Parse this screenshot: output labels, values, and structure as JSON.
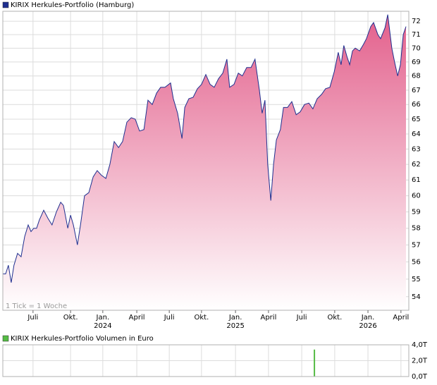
{
  "chart_data": [
    {
      "type": "area",
      "title": "KIRIX Herkules-Portfolio (Hamburg)",
      "annotation": "1 Tick = 1 Woche",
      "series": [
        {
          "name": "KIRIX Herkules-Portfolio (Hamburg)",
          "color": "#1f2f8f",
          "x": [
            0,
            1.1,
            2.2,
            3.3,
            4.4,
            5.8,
            7.2,
            8.6,
            10,
            11.1,
            12.2,
            13.3,
            14.4,
            16.1,
            17.8,
            19.4,
            21.1,
            22.8,
            23.9,
            25.6,
            26.7,
            27.8,
            29.4,
            30.6,
            32.2,
            33.9,
            35.6,
            37.2,
            38.9,
            40.6,
            42.2,
            43.9,
            45.6,
            47.2,
            48.9,
            50.6,
            52.2,
            53.9,
            55.6,
            57.2,
            58.9,
            60.6,
            62.2,
            63.9,
            66.1,
            67.2,
            68.9,
            70.6,
            71.7,
            73.3,
            75,
            76.7,
            78.3,
            80,
            81.7,
            83.3,
            85,
            86.7,
            88.3,
            89.4,
            91.1,
            92.8,
            94.4,
            96.1,
            97.8,
            99.4,
            101.1,
            102.2,
            103.3,
            104.4,
            105.6,
            106.7,
            107.8,
            109.4,
            110.6,
            112.2,
            113.9,
            115.6,
            117.2,
            118.9,
            120.6,
            122.2,
            123.9,
            125.6,
            127.2,
            128.9,
            130.6,
            132.2,
            133.3,
            134.4,
            135.6,
            136.7,
            137.8,
            138.9,
            140.6,
            142.2,
            143.3,
            145,
            146.1,
            147.8,
            148.9,
            150.6,
            151.7,
            153.3,
            154.4,
            155.6,
            156.7,
            157.8,
            158.9
          ],
          "values": [
            55.3,
            55.3,
            55.8,
            54.8,
            55.8,
            56.5,
            56.3,
            57.5,
            58.2,
            57.8,
            58,
            58,
            58.5,
            59.1,
            58.6,
            58.2,
            59,
            59.6,
            59.4,
            58,
            58.8,
            58.2,
            57,
            58.2,
            60,
            60.2,
            61.2,
            61.6,
            61.3,
            61.1,
            62,
            63.5,
            63.1,
            63.5,
            64.8,
            65.1,
            65,
            64.2,
            64.3,
            66.3,
            66,
            66.8,
            67.2,
            67.2,
            67.5,
            66.4,
            65.4,
            63.7,
            65.8,
            66.4,
            66.5,
            67.1,
            67.4,
            68.1,
            67.4,
            67.2,
            67.8,
            68.2,
            69.2,
            67.2,
            67.4,
            68.2,
            68,
            68.6,
            68.6,
            69.2,
            67,
            65.4,
            66.3,
            62,
            59.7,
            62,
            63.6,
            64.3,
            65.8,
            65.8,
            66.2,
            65.3,
            65.5,
            66,
            66.1,
            65.7,
            66.4,
            66.7,
            67.1,
            67.2,
            68.3,
            69.7,
            68.8,
            70.2,
            69.4,
            68.8,
            69.8,
            70,
            69.8,
            70.3,
            70.7,
            71.6,
            71.9,
            71,
            70.7,
            71.5,
            72.5,
            70,
            69,
            68,
            68.8,
            71,
            71.6
          ]
        }
      ],
      "xlim": [
        0,
        160
      ],
      "xticks": [
        {
          "value": 11.9,
          "label": "Juli"
        },
        {
          "value": 26.7,
          "label": "Okt."
        },
        {
          "value": 39.4,
          "label": "Jan."
        },
        {
          "value": 52.8,
          "label": "April"
        },
        {
          "value": 65.6,
          "label": "Juli"
        },
        {
          "value": 78.3,
          "label": "Okt."
        },
        {
          "value": 91.7,
          "label": "Jan."
        },
        {
          "value": 104.7,
          "label": "April"
        },
        {
          "value": 117.8,
          "label": "Juli"
        },
        {
          "value": 130.8,
          "label": "Okt."
        },
        {
          "value": 143.9,
          "label": "Jan."
        },
        {
          "value": 156.9,
          "label": "April"
        }
      ],
      "xtick_years": [
        {
          "value": 39.4,
          "label": "2024"
        },
        {
          "value": 91.7,
          "label": "2025"
        },
        {
          "value": 143.9,
          "label": "2026"
        }
      ],
      "ylim": [
        53.24,
        72.75
      ],
      "log_scale": true,
      "yticks": [
        54,
        55,
        56,
        57,
        58,
        59,
        60,
        61,
        62,
        63,
        64,
        65,
        66,
        67,
        68,
        69,
        70,
        71,
        72
      ],
      "grid": true,
      "fill_color": "#e3608c"
    },
    {
      "type": "bar",
      "title": "KIRIX Herkules-Portfolio Volumen in Euro",
      "series": [
        {
          "name": "KIRIX Herkules-Portfolio Volumen in Euro",
          "color": "#55bb44",
          "x": [
            122.8
          ],
          "values": [
            3.4
          ]
        }
      ],
      "xlim": [
        0,
        160
      ],
      "xticks": [
        11.9,
        26.7,
        39.4,
        52.8,
        65.6,
        78.3,
        91.7,
        104.7,
        117.8,
        130.8,
        143.9,
        156.9
      ],
      "ylim": [
        0,
        4
      ],
      "yticks": [
        {
          "value": 0,
          "label": "0,0T"
        },
        {
          "value": 2,
          "label": "2,0T"
        },
        {
          "value": 4,
          "label": "4,0T"
        }
      ],
      "grid": true
    }
  ]
}
